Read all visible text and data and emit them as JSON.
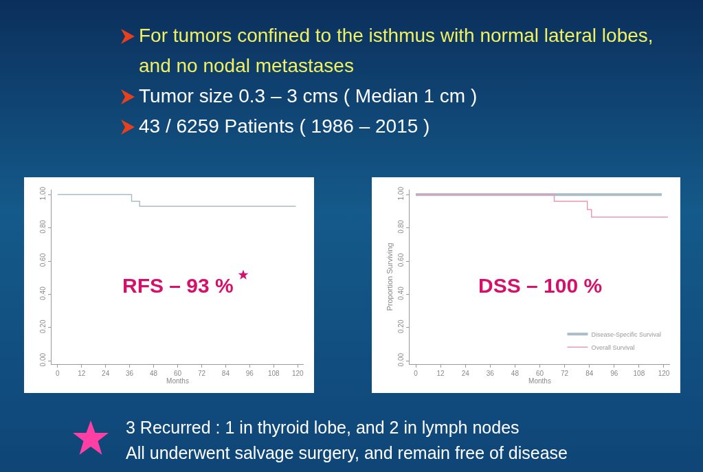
{
  "chart_data": [
    {
      "type": "step",
      "xlabel": "Months",
      "xlim": [
        -3,
        123
      ],
      "ylim": [
        -0.02,
        1.03
      ],
      "xticks": [
        0,
        12,
        24,
        36,
        48,
        60,
        72,
        84,
        96,
        108,
        120
      ],
      "yticks": [
        {
          "value": 0,
          "label": "0.00"
        },
        {
          "value": 0.2,
          "label": "0.20"
        },
        {
          "value": 0.4,
          "label": "0.40"
        },
        {
          "value": 0.6,
          "label": "0.60"
        },
        {
          "value": 0.8,
          "label": "0.80"
        },
        {
          "value": 1,
          "label": "1.00"
        }
      ],
      "grid": false,
      "legend": false,
      "marker": "none",
      "line_style": "solid",
      "series": [
        {
          "color": "#a9bcc8",
          "x": [
            0,
            37,
            41,
            119
          ],
          "values": [
            1,
            0.96,
            0.93,
            0.93
          ]
        }
      ],
      "annotations": [
        "For tumors confined to the isthmus with normal lateral lobes, and no nodal metastases",
        "Tumor size  0.3 – 3 cms ( Median 1 cm )",
        "43 / 6259 Patients ( 1986 – 2015 )",
        "RFS – 93 %"
      ]
    },
    {
      "type": "step",
      "xlabel": "Months",
      "ylabel": "Proportion Surviving",
      "xlim": [
        -3,
        123
      ],
      "ylim": [
        -0.02,
        1.03
      ],
      "xticks": [
        0,
        12,
        24,
        36,
        48,
        60,
        72,
        84,
        96,
        108,
        120
      ],
      "yticks": [
        {
          "value": 0,
          "label": "0.00"
        },
        {
          "value": 0.2,
          "label": "0.20"
        },
        {
          "value": 0.4,
          "label": "0.40"
        },
        {
          "value": 0.6,
          "label": "0.60"
        },
        {
          "value": 0.8,
          "label": "0.80"
        },
        {
          "value": 1,
          "label": "1.00"
        }
      ],
      "grid": false,
      "legend": "bottom right",
      "marker": "none",
      "line_style": "solid",
      "series": [
        {
          "name": "Disease-Specific Survival",
          "color": "#a9bcc8",
          "x": [
            0,
            119
          ],
          "values": [
            1,
            1
          ]
        },
        {
          "name": "Overall Survival",
          "color": "#e899b8",
          "x": [
            0,
            67,
            83,
            85,
            122
          ],
          "values": [
            1,
            0.96,
            0.91,
            0.865,
            0.865
          ]
        }
      ],
      "annotations": [
        "DSS – 100 %",
        "3 Recurred :  1 in thyroid lobe, and 2 in lymph nodes",
        "All underwent salvage surgery, and remain free of disease"
      ]
    }
  ]
}
